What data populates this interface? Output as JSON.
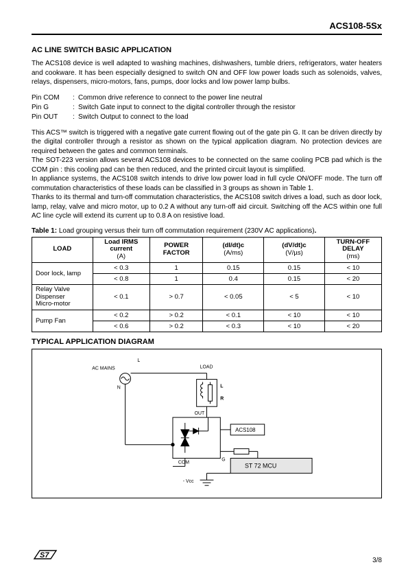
{
  "header": {
    "part_number": "ACS108-5Sx"
  },
  "section": {
    "title": "AC LINE SWITCH BASIC APPLICATION",
    "intro_text": "The ACS108 device is well adapted to washing machines, dishwashers, tumble driers, refrigerators, water heaters and cookware. It has been especially designed to switch ON and OFF low power loads such as solenoids, valves, relays, dispensers, micro-motors, fans, pumps, door locks and low power lamp bulbs.",
    "pins": [
      {
        "name": "Pin COM",
        "desc": "Common drive reference to connect to the power line neutral"
      },
      {
        "name": "Pin G",
        "desc": "Switch Gate input to connect to the digital controller through the resistor"
      },
      {
        "name": "Pin OUT",
        "desc": "Switch Output to connect to the load"
      }
    ],
    "body_text": "This ACS™ switch is triggered with a negative gate current flowing out of the gate pin G. It can be driven directly by the digital controller through a resistor as shown on the typical application diagram. No protection devices are required between the gates and common terminals.\nThe SOT-223 version allows several ACS108 devices to be connected on the same cooling PCB pad which is the COM pin : this cooling pad can be then reduced, and the printed circuit layout is simplified.\nIn appliance systems, the ACS108 switch intends to drive low power load in full cycle ON/OFF mode. The turn off commutation characteristics of these loads can be classified in 3 groups as shown in Table 1.\nThanks to its thermal and turn-off commutation characteristics, the ACS108 switch drives a load, such as door lock, lamp, relay, valve and micro motor, up to 0.2 A without any turn-off aid circuit. Switching off the ACS within one full AC line cycle will extend its current up to 0.8 A on resistive load."
  },
  "table": {
    "caption_bold": "Table 1:",
    "caption_text": " Load grouping versus their turn off commutation requirement (230V AC applications)",
    "caption_dot": ".",
    "columns": [
      {
        "main": "LOAD",
        "sub": ""
      },
      {
        "main": "Load IRMS current",
        "sub": "(A)"
      },
      {
        "main": "POWER FACTOR",
        "sub": ""
      },
      {
        "main": "(dI/dt)c",
        "sub": "(A/ms)"
      },
      {
        "main": "(dV/dt)c",
        "sub": "(V/µs)"
      },
      {
        "main": "TURN-OFF DELAY",
        "sub": "(ms)"
      }
    ],
    "rows": [
      {
        "load": "Door lock, lamp",
        "span": 2,
        "cells": [
          [
            "< 0.3",
            "1",
            "0.15",
            "0.15",
            "< 10"
          ],
          [
            "< 0.8",
            "1",
            "0.4",
            "0.15",
            "< 20"
          ]
        ]
      },
      {
        "load": "Relay Valve Dispenser Micro-motor",
        "span": 1,
        "cells": [
          [
            "< 0.1",
            "> 0.7",
            "< 0.05",
            "< 5",
            "< 10"
          ]
        ]
      },
      {
        "load": "Pump Fan",
        "span": 2,
        "cells": [
          [
            "< 0.2",
            "> 0.2",
            "< 0.1",
            "< 10",
            "< 10"
          ],
          [
            "< 0.6",
            "> 0.2",
            "< 0.3",
            "< 10",
            "< 20"
          ]
        ]
      }
    ]
  },
  "diagram": {
    "title": "TYPICAL APPLICATION DIAGRAM",
    "labels": {
      "ac_mains": "AC MAINS",
      "L": "L",
      "N": "N",
      "load": "LOAD",
      "indL": "L",
      "indR": "R",
      "out": "OUT",
      "com": "COM",
      "g": "G",
      "acs": "ACS108",
      "mcu": "ST 72 MCU",
      "vcc": "- Vcc"
    },
    "colors": {
      "line": "#000000",
      "box_fill": "#ffffff",
      "mcu_fill": "#e6e6e6"
    },
    "stroke_width": 1
  },
  "footer": {
    "page": "3/8"
  }
}
